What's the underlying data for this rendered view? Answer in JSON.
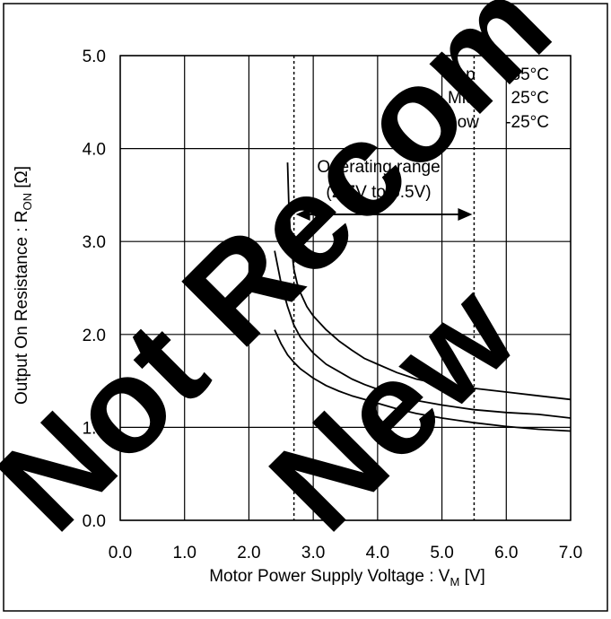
{
  "chart_data": {
    "type": "line",
    "xlabel": "Motor Power Supply Voltage : V",
    "xlabel_sub": "M",
    "xlabel_unit": " [V]",
    "ylabel": "Output On Resistance : R",
    "ylabel_sub": "ON",
    "ylabel_unit": " [Ω]",
    "xlim": [
      0.0,
      7.0
    ],
    "ylim": [
      0.0,
      5.0
    ],
    "x_ticks": [
      "0.0",
      "1.0",
      "2.0",
      "3.0",
      "4.0",
      "5.0",
      "6.0",
      "7.0"
    ],
    "y_ticks": [
      "0.0",
      "1.0",
      "2.0",
      "3.0",
      "4.0",
      "5.0"
    ],
    "grid": true,
    "legend": [
      {
        "pos": "Top",
        "temp": "85°C"
      },
      {
        "pos": "Mid",
        "temp": "25°C"
      },
      {
        "pos": "Low",
        "temp": "-25°C"
      }
    ],
    "annotation": {
      "text_line1": "Operating range",
      "text_line2": "(2.7V to 5.5V)",
      "range": [
        2.7,
        5.5
      ]
    },
    "watermark": "Not Recommended for New Designs",
    "series": [
      {
        "name": "85°C",
        "color": "#000000",
        "x": [
          2.6,
          2.62,
          2.65,
          2.7,
          2.75,
          2.8,
          2.9,
          3.0,
          3.2,
          3.4,
          3.6,
          3.8,
          4.0,
          4.3,
          4.6,
          5.0,
          5.5,
          6.0,
          6.5,
          7.0
        ],
        "y": [
          3.85,
          3.4,
          3.0,
          2.7,
          2.55,
          2.45,
          2.3,
          2.2,
          2.05,
          1.93,
          1.83,
          1.74,
          1.68,
          1.59,
          1.52,
          1.46,
          1.42,
          1.38,
          1.34,
          1.3
        ]
      },
      {
        "name": "25°C",
        "color": "#000000",
        "x": [
          2.4,
          2.5,
          2.6,
          2.7,
          2.8,
          2.9,
          3.0,
          3.2,
          3.4,
          3.6,
          3.8,
          4.0,
          4.3,
          4.6,
          5.0,
          5.5,
          6.0,
          6.5,
          7.0
        ],
        "y": [
          2.9,
          2.55,
          2.3,
          2.1,
          1.97,
          1.88,
          1.8,
          1.68,
          1.6,
          1.52,
          1.46,
          1.41,
          1.34,
          1.29,
          1.24,
          1.19,
          1.16,
          1.14,
          1.1
        ]
      },
      {
        "name": "-25°C",
        "color": "#000000",
        "x": [
          2.4,
          2.5,
          2.6,
          2.7,
          2.8,
          2.9,
          3.0,
          3.2,
          3.4,
          3.6,
          3.8,
          4.0,
          4.3,
          4.6,
          5.0,
          5.5,
          6.0,
          6.5,
          7.0
        ],
        "y": [
          2.05,
          1.9,
          1.78,
          1.7,
          1.63,
          1.58,
          1.53,
          1.45,
          1.39,
          1.34,
          1.3,
          1.26,
          1.2,
          1.15,
          1.1,
          1.05,
          1.01,
          0.98,
          0.96
        ]
      }
    ]
  }
}
